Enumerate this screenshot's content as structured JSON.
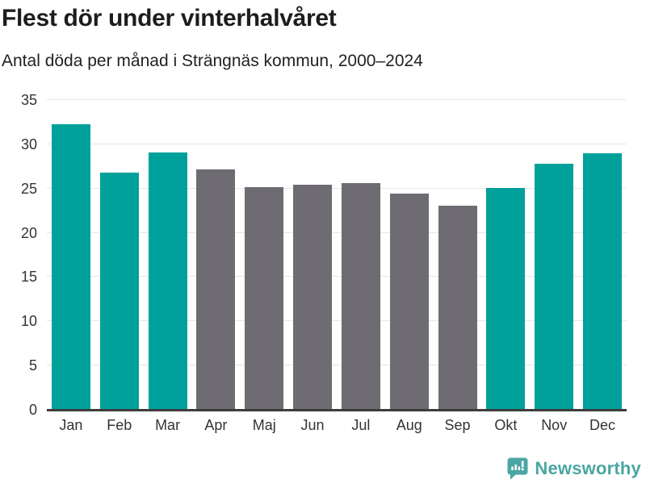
{
  "header": {
    "title": "Flest dör under vinterhalvåret",
    "subtitle": "Antal döda per månad i Strängnäs kommun, 2000–2024"
  },
  "chart_data": {
    "type": "bar",
    "title": "Flest dör under vinterhalvåret",
    "subtitle": "Antal döda per månad i Strängnäs kommun, 2000–2024",
    "categories": [
      "Jan",
      "Feb",
      "Mar",
      "Apr",
      "Maj",
      "Jun",
      "Jul",
      "Aug",
      "Sep",
      "Okt",
      "Nov",
      "Dec"
    ],
    "values": [
      32.2,
      26.7,
      29.0,
      27.1,
      25.1,
      25.3,
      25.5,
      24.3,
      23.0,
      25.0,
      27.7,
      28.9
    ],
    "bar_color_keys": [
      "winter",
      "winter",
      "winter",
      "summer",
      "summer",
      "summer",
      "summer",
      "summer",
      "summer",
      "winter",
      "winter",
      "winter"
    ],
    "colors": {
      "winter": "#00a19a",
      "summer": "#6e6c72",
      "grid": "#e6e6e6",
      "axis_line": "#3d3d3d",
      "tick_text": "#333333"
    },
    "xlabel": "",
    "ylabel": "",
    "ylim": [
      0,
      35
    ],
    "yticks": [
      0,
      5,
      10,
      15,
      20,
      25,
      30,
      35
    ],
    "grid": true,
    "legend": false
  },
  "footer": {
    "brand": "Newsworthy",
    "brand_color": "#4aa6a2",
    "logo_icon": "bar-chart-speech-bubble-icon"
  }
}
